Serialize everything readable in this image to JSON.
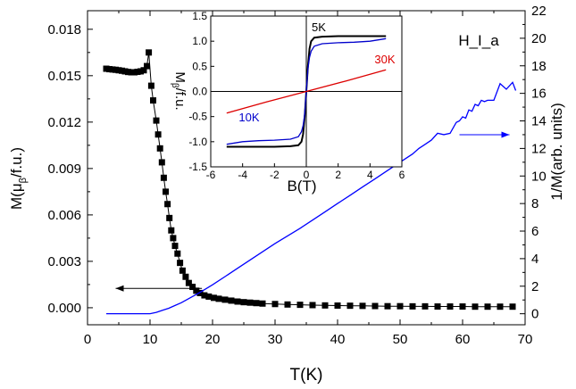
{
  "chart_data": [
    {
      "type": "scatter",
      "xlabel": "T(K)",
      "ylabel_left": "M(μ_β/f.u.)",
      "ylabel_right": "1/M(arb. units)",
      "annotation": "H_I_a",
      "xlim": [
        0,
        70
      ],
      "ylim_left": [
        -0.0011,
        0.0192
      ],
      "ylim_right": [
        -0.8,
        22
      ],
      "x_ticks": [
        "0",
        "10",
        "20",
        "30",
        "40",
        "50",
        "60",
        "70"
      ],
      "y_left_ticks": [
        "0.000",
        "0.003",
        "0.006",
        "0.009",
        "0.012",
        "0.015",
        "0.018"
      ],
      "y_right_ticks": [
        "0",
        "2",
        "4",
        "6",
        "8",
        "10",
        "12",
        "14",
        "16",
        "18",
        "20",
        "22"
      ],
      "horizontal_line_left_axis": -0.0011,
      "series": [
        {
          "axis": "left",
          "marker": "square",
          "color": "#000000",
          "x": [
            3,
            3.5,
            4,
            4.5,
            5,
            5.5,
            6,
            6.5,
            7,
            7.5,
            8,
            8.5,
            9,
            9.5,
            9.8,
            10.2,
            10.5,
            11,
            11.3,
            11.6,
            11.9,
            12.2,
            12.5,
            12.8,
            13.1,
            13.4,
            13.7,
            14,
            14.4,
            14.8,
            15.2,
            15.7,
            16.2,
            16.8,
            17.4,
            18,
            18.7,
            19.4,
            20.2,
            21,
            22,
            23,
            24,
            25,
            26,
            27,
            28,
            30,
            32,
            34,
            36,
            38,
            40,
            42,
            44,
            46,
            48,
            50,
            52,
            54,
            56,
            58,
            60,
            62,
            64,
            66,
            68
          ],
          "y": [
            0.01545,
            0.01542,
            0.0154,
            0.01538,
            0.01535,
            0.01532,
            0.01528,
            0.01524,
            0.01522,
            0.01522,
            0.01525,
            0.01528,
            0.01535,
            0.01562,
            0.0165,
            0.01435,
            0.0134,
            0.0121,
            0.0112,
            0.0103,
            0.0094,
            0.0084,
            0.0075,
            0.0067,
            0.0058,
            0.005,
            0.0045,
            0.004,
            0.0035,
            0.0029,
            0.0024,
            0.002,
            0.0016,
            0.00135,
            0.0011,
            0.00095,
            0.0008,
            0.00072,
            0.00064,
            0.00058,
            0.00052,
            0.00046,
            0.0004,
            0.00036,
            0.00033,
            0.0003,
            0.00027,
            0.00024,
            0.00021,
            0.00019,
            0.00017,
            0.00015,
            0.00014,
            0.00013,
            0.00012,
            0.00011,
            0.0001,
            0.0001,
            9e-05,
            9e-05,
            8e-05,
            8e-05,
            8e-05,
            7e-05,
            7e-05,
            7e-05,
            7e-05
          ]
        },
        {
          "axis": "right",
          "marker": "none",
          "color": "#0000ff",
          "x": [
            3,
            10,
            11,
            12,
            13,
            14,
            15,
            16,
            18,
            20,
            22,
            24,
            26,
            28,
            30,
            32,
            34,
            36,
            38,
            40,
            42,
            44,
            46,
            48,
            50,
            52,
            53,
            54,
            55,
            56,
            57,
            58,
            59,
            59.5,
            60,
            60.5,
            61,
            61.5,
            62,
            62.5,
            63,
            63.5,
            64,
            65,
            66,
            67,
            68,
            68.5
          ],
          "y": [
            0,
            0,
            0.1,
            0.25,
            0.4,
            0.6,
            0.8,
            1.05,
            1.55,
            2.1,
            2.7,
            3.3,
            3.9,
            4.5,
            5.1,
            5.65,
            6.2,
            6.8,
            7.4,
            8,
            8.6,
            9.2,
            9.8,
            10.4,
            11,
            11.6,
            12,
            12.3,
            12.6,
            13.1,
            13.0,
            13.1,
            13.9,
            14.0,
            14.3,
            14.2,
            14.8,
            14.7,
            15.2,
            15.1,
            15.5,
            15.4,
            15.5,
            15.5,
            16.7,
            16.3,
            16.8,
            16.2
          ]
        }
      ],
      "arrows": [
        {
          "direction": "left",
          "axis": "left",
          "x_from": 18.3,
          "x_to": 4.5,
          "y": 0.00125
        },
        {
          "direction": "right",
          "axis": "right",
          "x_from": 59.5,
          "x_to": 67.5,
          "y": 13
        }
      ]
    },
    {
      "type": "line",
      "role": "inset",
      "xlabel": "B(T)",
      "ylabel": "M_β/f.u.",
      "xlim": [
        -6,
        6
      ],
      "ylim": [
        -1.5,
        1.5
      ],
      "x_ticks": [
        "-6",
        "-4",
        "-2",
        "0",
        "2",
        "4",
        "6"
      ],
      "y_ticks": [
        "-1.5",
        "-1.0",
        "-0.5",
        "0.0",
        "0.5",
        "1.0",
        "1.5"
      ],
      "series": [
        {
          "name": "5K",
          "color": "#000000",
          "x": [
            -5,
            -4,
            -3,
            -2,
            -1,
            -0.5,
            -0.3,
            -0.2,
            -0.1,
            0,
            0.1,
            0.2,
            0.3,
            0.5,
            1,
            2,
            3,
            4,
            5
          ],
          "y": [
            -1.1,
            -1.1,
            -1.1,
            -1.1,
            -1.09,
            -1.07,
            -1.0,
            -0.85,
            -0.5,
            0,
            0.5,
            0.85,
            1.0,
            1.07,
            1.09,
            1.1,
            1.1,
            1.1,
            1.1
          ]
        },
        {
          "name": "10K",
          "color": "#0000cc",
          "x": [
            -5,
            -4,
            -3,
            -2,
            -1,
            -0.5,
            -0.3,
            -0.2,
            -0.1,
            0,
            0.1,
            0.2,
            0.3,
            0.5,
            1,
            2,
            3,
            4,
            5
          ],
          "y": [
            -1.05,
            -1.0,
            -0.98,
            -0.97,
            -0.95,
            -0.9,
            -0.8,
            -0.68,
            -0.45,
            0,
            0.45,
            0.68,
            0.8,
            0.9,
            0.95,
            0.97,
            0.98,
            1.0,
            1.05
          ]
        },
        {
          "name": "30K",
          "color": "#dd0000",
          "x": [
            -5,
            -2.5,
            0,
            2.5,
            5
          ],
          "y": [
            -0.43,
            -0.21,
            0,
            0.21,
            0.43
          ]
        }
      ]
    }
  ]
}
